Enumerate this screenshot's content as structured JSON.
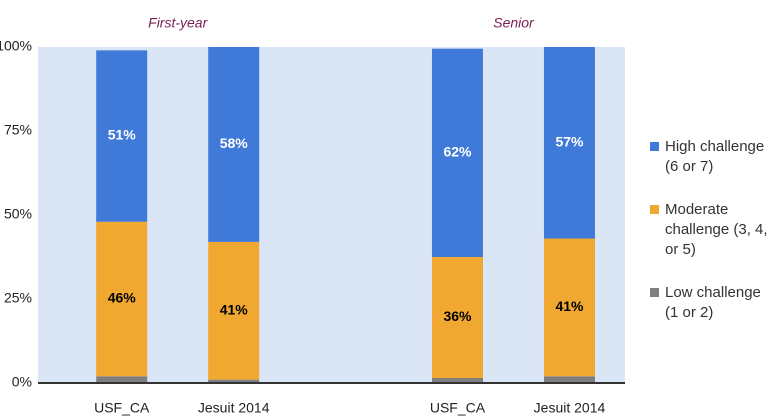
{
  "chart_data": {
    "type": "stacked_bar",
    "groups": [
      "First-year",
      "Senior"
    ],
    "categories": [
      "USF_CA",
      "Jesuit 2014",
      "USF_CA",
      "Jesuit 2014"
    ],
    "series": [
      {
        "name": "Low challenge (1 or 2)",
        "color": "#7f7f7f",
        "values": [
          2,
          1,
          1.5,
          2
        ]
      },
      {
        "name": "Moderate challenge (3, 4, or 5)",
        "color": "#f0a830",
        "values": [
          46,
          41,
          36,
          41
        ],
        "value_labels": [
          "46%",
          "41%",
          "36%",
          "41%"
        ]
      },
      {
        "name": "High challenge (6 or 7)",
        "color": "#3f7ad9",
        "values": [
          51,
          58,
          62,
          57
        ],
        "value_labels": [
          "51%",
          "58%",
          "62%",
          "57%"
        ]
      }
    ],
    "ylim": [
      0,
      100
    ],
    "yticks": [
      {
        "value": 0,
        "label": "0%"
      },
      {
        "value": 25,
        "label": "25%"
      },
      {
        "value": 50,
        "label": "50%"
      },
      {
        "value": 75,
        "label": "75%"
      },
      {
        "value": 100,
        "label": "100%"
      }
    ],
    "grid": false
  }
}
